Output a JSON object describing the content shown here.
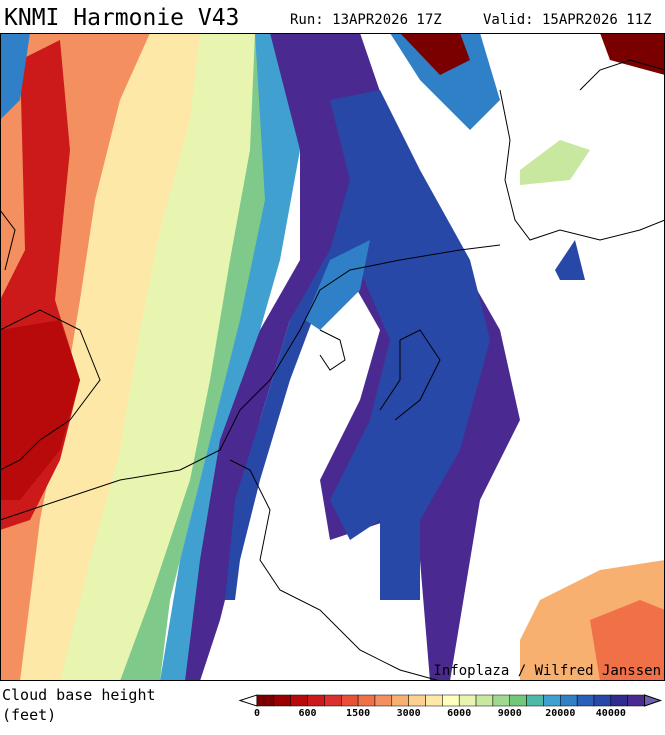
{
  "header": {
    "title": "KNMI Harmonie V43",
    "run": "Run: 13APR2026 17Z",
    "valid": "Valid: 15APR2026 11Z"
  },
  "map": {
    "credit": "Infoplaza / Wilfred Janssen"
  },
  "legend": {
    "label_line1": "Cloud base height",
    "label_line2": "(feet)",
    "colors": [
      "#7a0000",
      "#9a0000",
      "#b80a0a",
      "#cc1a1a",
      "#dc3030",
      "#e85038",
      "#f07048",
      "#f49060",
      "#f8b070",
      "#fcd090",
      "#fde8a8",
      "#ffffc0",
      "#e8f5b0",
      "#c8e8a0",
      "#a0d890",
      "#70c878",
      "#50b8a8",
      "#40a0d0",
      "#3080c8",
      "#2860b8",
      "#2848a8",
      "#302c90",
      "#4a2a90"
    ],
    "ticks": [
      "0",
      "600",
      "1500",
      "3000",
      "6000",
      "9000",
      "20000",
      "40000"
    ]
  }
}
